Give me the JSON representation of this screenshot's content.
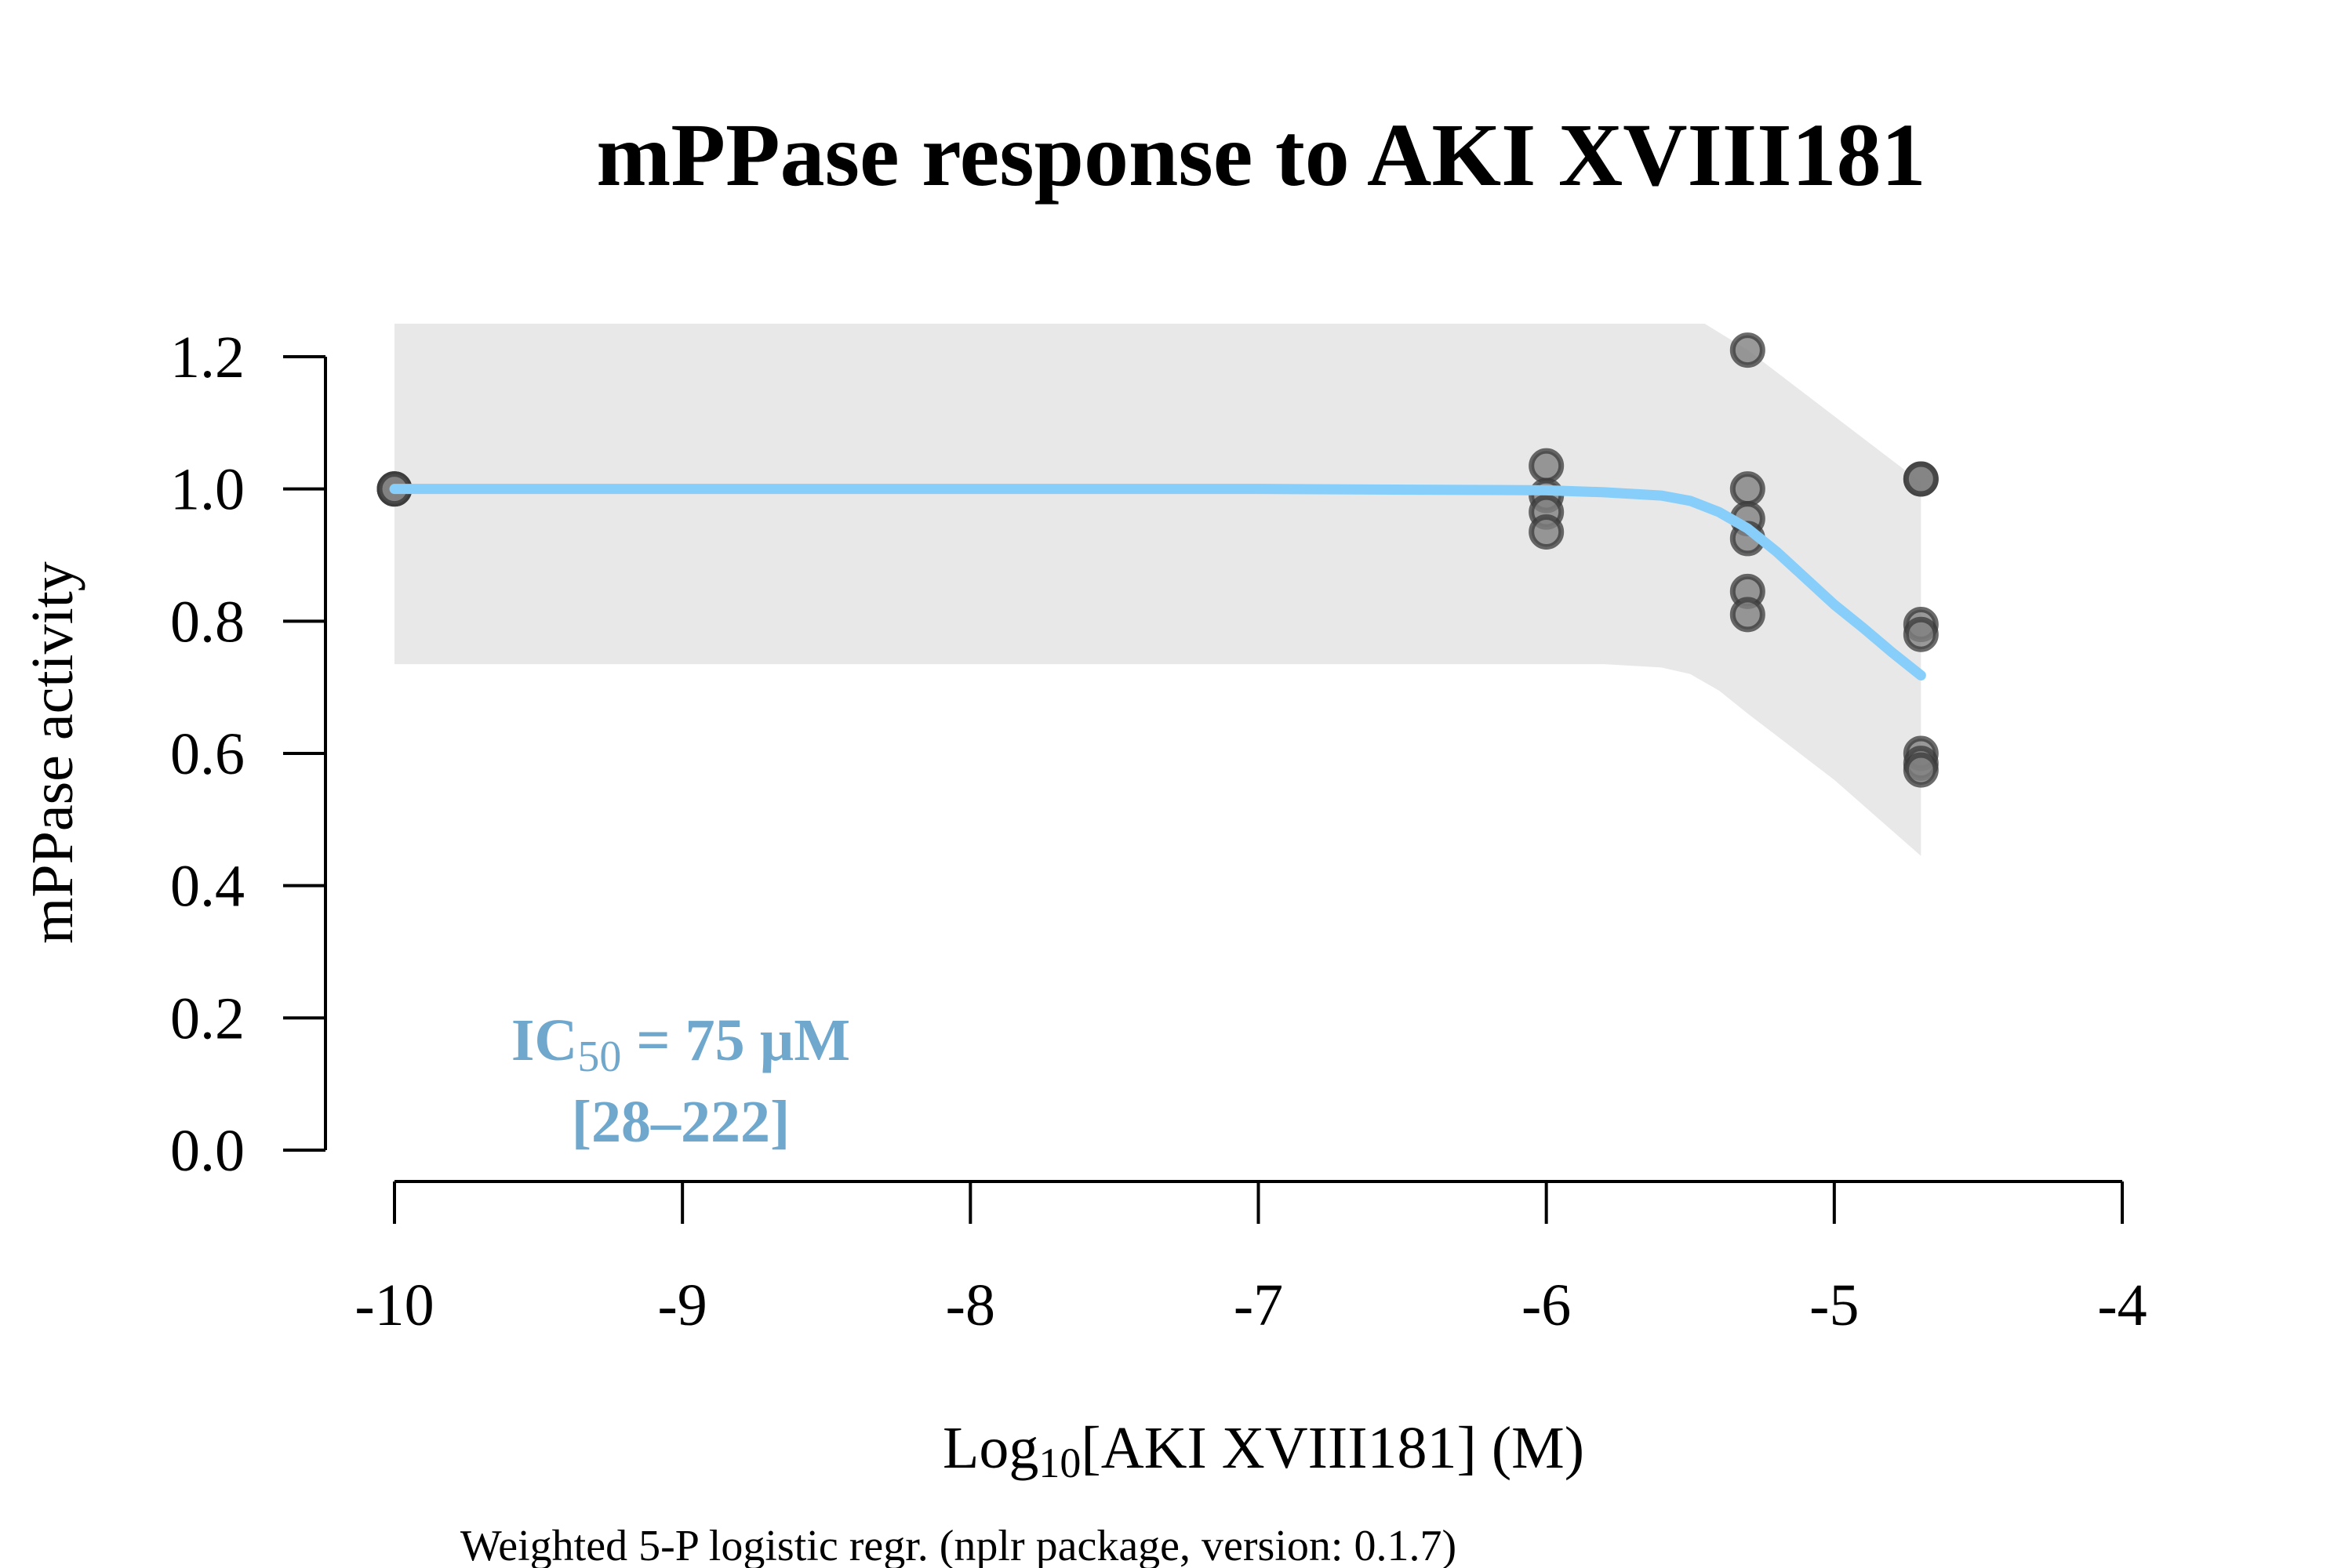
{
  "chart_data": {
    "type": "scatter",
    "title": "mPPase response to AKI XVIII181",
    "xlabel": {
      "prefix": "Log",
      "sub": "10",
      "suffix": "[AKI XVIII181] (M)"
    },
    "ylabel": "mPPase activity",
    "caption": "Weighted 5-P logistic regr. (nplr package, version: 0.1.7)",
    "annotation": {
      "prefix": "IC",
      "sub": "50",
      "suffix": " = 75 µM",
      "ci": "[28–222]",
      "color": "#6fa8cc"
    },
    "xlim": [
      -10,
      -4
    ],
    "ylim": [
      0,
      1.2
    ],
    "xticks": [
      {
        "value": -10,
        "label": "-10"
      },
      {
        "value": -9,
        "label": "-9"
      },
      {
        "value": -8,
        "label": "-8"
      },
      {
        "value": -7,
        "label": "-7"
      },
      {
        "value": -6,
        "label": "-6"
      },
      {
        "value": -5,
        "label": "-5"
      },
      {
        "value": -4,
        "label": "-4"
      }
    ],
    "yticks": [
      {
        "value": 0.0,
        "label": "0.0"
      },
      {
        "value": 0.2,
        "label": "0.2"
      },
      {
        "value": 0.4,
        "label": "0.4"
      },
      {
        "value": 0.6,
        "label": "0.6"
      },
      {
        "value": 0.8,
        "label": "0.8"
      },
      {
        "value": 1.0,
        "label": "1.0"
      },
      {
        "value": 1.2,
        "label": "1.2"
      }
    ],
    "points": [
      {
        "x": -10,
        "y": 1.0
      },
      {
        "x": -10,
        "y": 1.0
      },
      {
        "x": -10,
        "y": 1.0
      },
      {
        "x": -6,
        "y": 1.035
      },
      {
        "x": -6,
        "y": 0.99
      },
      {
        "x": -6,
        "y": 0.965
      },
      {
        "x": -6,
        "y": 0.935
      },
      {
        "x": -5.301,
        "y": 1.21
      },
      {
        "x": -5.301,
        "y": 1.0
      },
      {
        "x": -5.301,
        "y": 0.955
      },
      {
        "x": -5.301,
        "y": 0.925
      },
      {
        "x": -5.301,
        "y": 0.845
      },
      {
        "x": -5.301,
        "y": 0.81
      },
      {
        "x": -4.699,
        "y": 1.015
      },
      {
        "x": -4.699,
        "y": 1.015
      },
      {
        "x": -4.699,
        "y": 0.795
      },
      {
        "x": -4.699,
        "y": 0.78
      },
      {
        "x": -4.699,
        "y": 0.6
      },
      {
        "x": -4.699,
        "y": 0.585
      },
      {
        "x": -4.699,
        "y": 0.575
      }
    ],
    "fit_curve": {
      "color": "#87cefa",
      "points": [
        {
          "x": -10,
          "y": 1.0
        },
        {
          "x": -7,
          "y": 1.0
        },
        {
          "x": -6,
          "y": 0.998
        },
        {
          "x": -5.8,
          "y": 0.995
        },
        {
          "x": -5.6,
          "y": 0.99
        },
        {
          "x": -5.5,
          "y": 0.982
        },
        {
          "x": -5.4,
          "y": 0.965
        },
        {
          "x": -5.3,
          "y": 0.94
        },
        {
          "x": -5.2,
          "y": 0.905
        },
        {
          "x": -5.1,
          "y": 0.865
        },
        {
          "x": -5.0,
          "y": 0.825
        },
        {
          "x": -4.9,
          "y": 0.79
        },
        {
          "x": -4.8,
          "y": 0.753
        },
        {
          "x": -4.699,
          "y": 0.718
        }
      ]
    },
    "confidence_band": {
      "color": "#e8e8e8",
      "upper": [
        {
          "x": -10,
          "y": 1.25
        },
        {
          "x": -5.45,
          "y": 1.25
        },
        {
          "x": -5.3,
          "y": 1.21
        },
        {
          "x": -5.0,
          "y": 1.11
        },
        {
          "x": -4.699,
          "y": 1.01
        }
      ],
      "lower": [
        {
          "x": -10,
          "y": 0.735
        },
        {
          "x": -5.8,
          "y": 0.735
        },
        {
          "x": -5.6,
          "y": 0.73
        },
        {
          "x": -5.5,
          "y": 0.72
        },
        {
          "x": -5.4,
          "y": 0.695
        },
        {
          "x": -5.3,
          "y": 0.66
        },
        {
          "x": -5.0,
          "y": 0.56
        },
        {
          "x": -4.699,
          "y": 0.445
        }
      ]
    },
    "point_style": {
      "fill": "#808080",
      "stroke": "#3a3a3a"
    },
    "grid": false
  }
}
